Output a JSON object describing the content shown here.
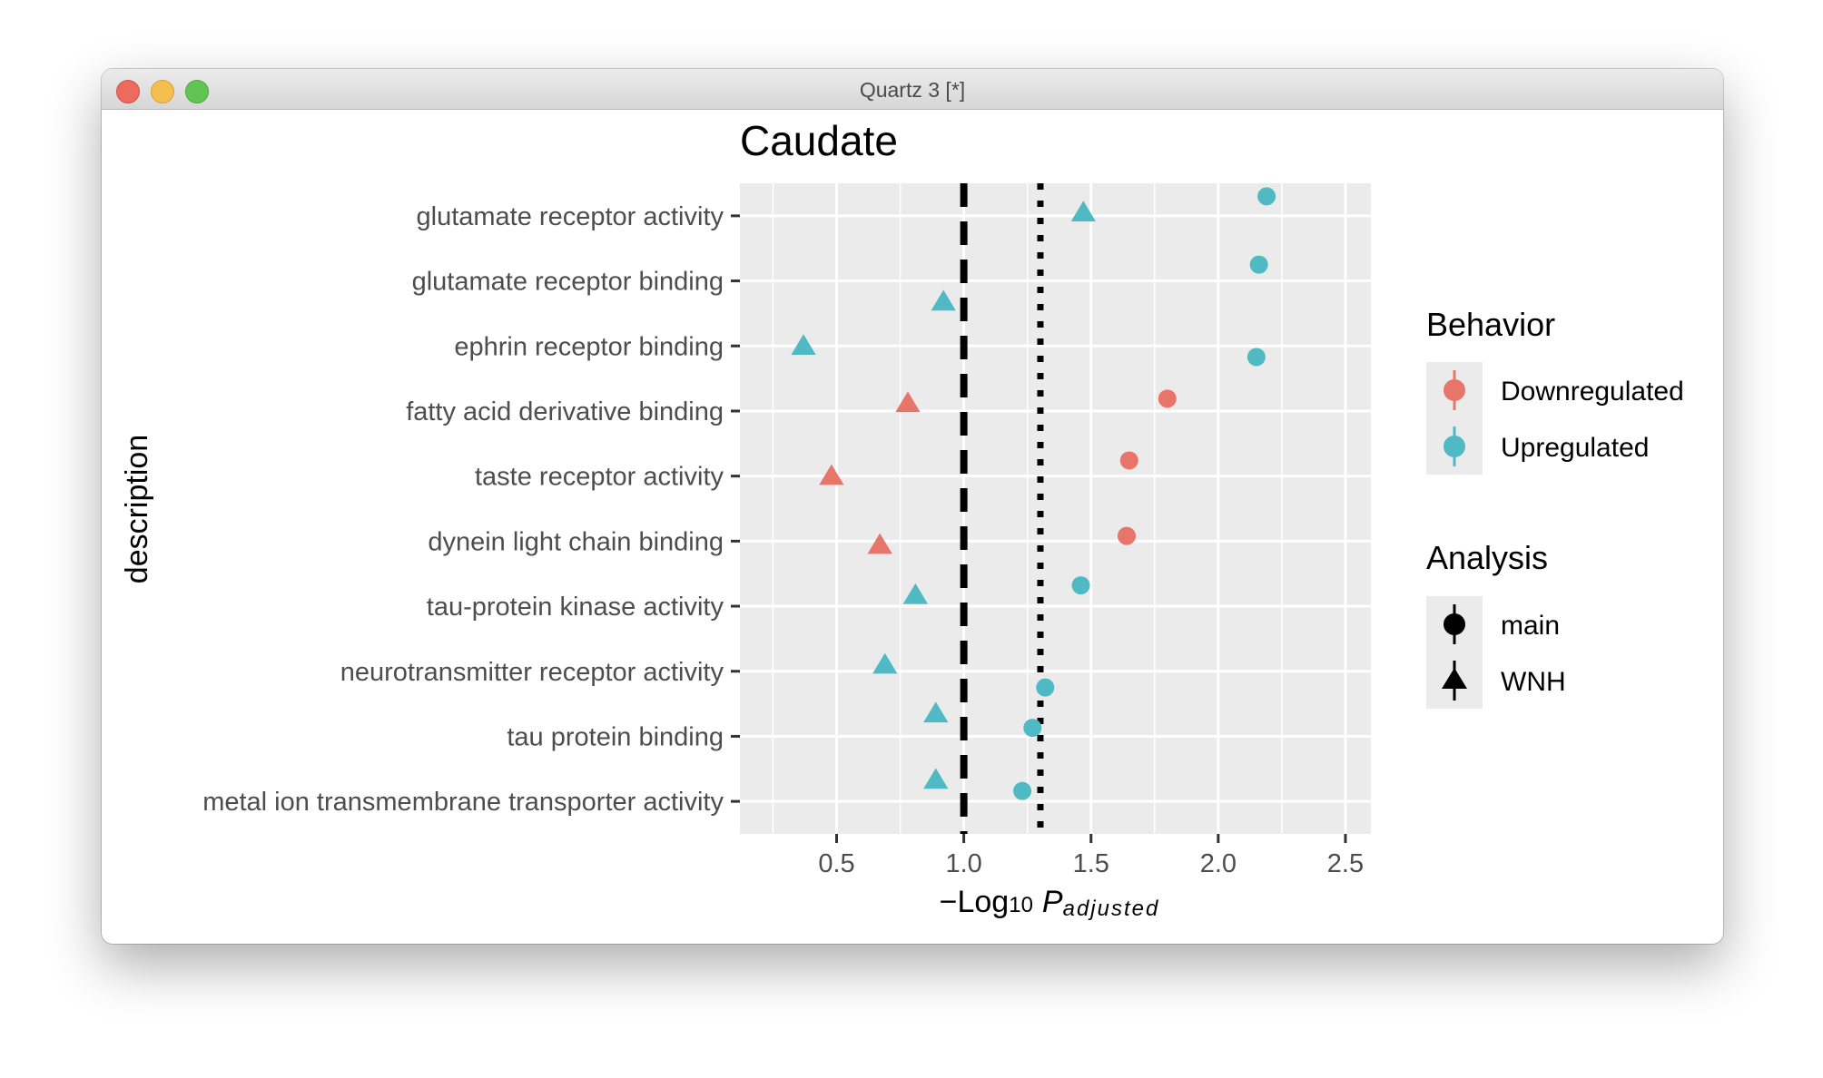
{
  "window": {
    "title": "Quartz 3 [*]"
  },
  "colors": {
    "downregulated": "#e8756a",
    "upregulated": "#4fbac3",
    "panel": "#ebebeb",
    "grid": "#ffffff"
  },
  "chart_data": {
    "type": "scatter",
    "title": "Caudate",
    "ylabel": "description",
    "xlabel": {
      "prefix": "−Log",
      "sub": "10",
      "p": "P",
      "p_sub": "adjusted"
    },
    "xlim": [
      0.12,
      2.6
    ],
    "xticks": [
      "0.5",
      "1.0",
      "1.5",
      "2.0",
      "2.5"
    ],
    "xtick_values": [
      0.5,
      1.0,
      1.5,
      2.0,
      2.5
    ],
    "reference_lines": [
      {
        "x": 1.0,
        "style": "dashed"
      },
      {
        "x": 1.301,
        "style": "dotted"
      }
    ],
    "categories": [
      "glutamate receptor activity",
      "glutamate receptor binding",
      "ephrin receptor binding",
      "fatty acid derivative binding",
      "taste receptor activity",
      "dynein light chain binding",
      "tau-protein kinase activity",
      "neurotransmitter receptor activity",
      "tau protein binding",
      "metal ion transmembrane transporter activity"
    ],
    "points": [
      {
        "category": "glutamate receptor activity",
        "x": 2.19,
        "behavior": "Upregulated",
        "analysis": "main",
        "offset": -0.3
      },
      {
        "category": "glutamate receptor activity",
        "x": 1.47,
        "behavior": "Upregulated",
        "analysis": "WNH",
        "offset": -0.05
      },
      {
        "category": "glutamate receptor binding",
        "x": 2.16,
        "behavior": "Upregulated",
        "analysis": "main",
        "offset": -0.25
      },
      {
        "category": "glutamate receptor binding",
        "x": 0.92,
        "behavior": "Upregulated",
        "analysis": "WNH",
        "offset": 0.32
      },
      {
        "category": "ephrin receptor binding",
        "x": 2.15,
        "behavior": "Upregulated",
        "analysis": "main",
        "offset": 0.17
      },
      {
        "category": "ephrin receptor binding",
        "x": 0.37,
        "behavior": "Upregulated",
        "analysis": "WNH",
        "offset": 0.0
      },
      {
        "category": "fatty acid derivative binding",
        "x": 1.8,
        "behavior": "Downregulated",
        "analysis": "main",
        "offset": -0.19
      },
      {
        "category": "fatty acid derivative binding",
        "x": 0.78,
        "behavior": "Downregulated",
        "analysis": "WNH",
        "offset": -0.12
      },
      {
        "category": "taste receptor activity",
        "x": 1.65,
        "behavior": "Downregulated",
        "analysis": "main",
        "offset": -0.24
      },
      {
        "category": "taste receptor activity",
        "x": 0.48,
        "behavior": "Downregulated",
        "analysis": "WNH",
        "offset": 0.0
      },
      {
        "category": "dynein light chain binding",
        "x": 1.64,
        "behavior": "Downregulated",
        "analysis": "main",
        "offset": -0.08
      },
      {
        "category": "dynein light chain binding",
        "x": 0.67,
        "behavior": "Downregulated",
        "analysis": "WNH",
        "offset": 0.06
      },
      {
        "category": "tau-protein kinase activity",
        "x": 1.46,
        "behavior": "Upregulated",
        "analysis": "main",
        "offset": -0.32
      },
      {
        "category": "tau-protein kinase activity",
        "x": 0.81,
        "behavior": "Upregulated",
        "analysis": "WNH",
        "offset": -0.17
      },
      {
        "category": "neurotransmitter receptor activity",
        "x": 1.32,
        "behavior": "Upregulated",
        "analysis": "main",
        "offset": 0.25
      },
      {
        "category": "neurotransmitter receptor activity",
        "x": 0.69,
        "behavior": "Upregulated",
        "analysis": "WNH",
        "offset": -0.1
      },
      {
        "category": "tau protein binding",
        "x": 1.27,
        "behavior": "Upregulated",
        "analysis": "main",
        "offset": -0.13
      },
      {
        "category": "tau protein binding",
        "x": 0.89,
        "behavior": "Upregulated",
        "analysis": "WNH",
        "offset": -0.35
      },
      {
        "category": "metal ion transmembrane transporter activity",
        "x": 1.23,
        "behavior": "Upregulated",
        "analysis": "main",
        "offset": -0.16
      },
      {
        "category": "metal ion transmembrane transporter activity",
        "x": 0.89,
        "behavior": "Upregulated",
        "analysis": "WNH",
        "offset": -0.33
      }
    ],
    "legend": {
      "placement": "right",
      "behavior": {
        "title": "Behavior",
        "entries": [
          "Downregulated",
          "Upregulated"
        ]
      },
      "analysis": {
        "title": "Analysis",
        "entries": [
          "main",
          "WNH"
        ]
      }
    },
    "grid": true
  }
}
